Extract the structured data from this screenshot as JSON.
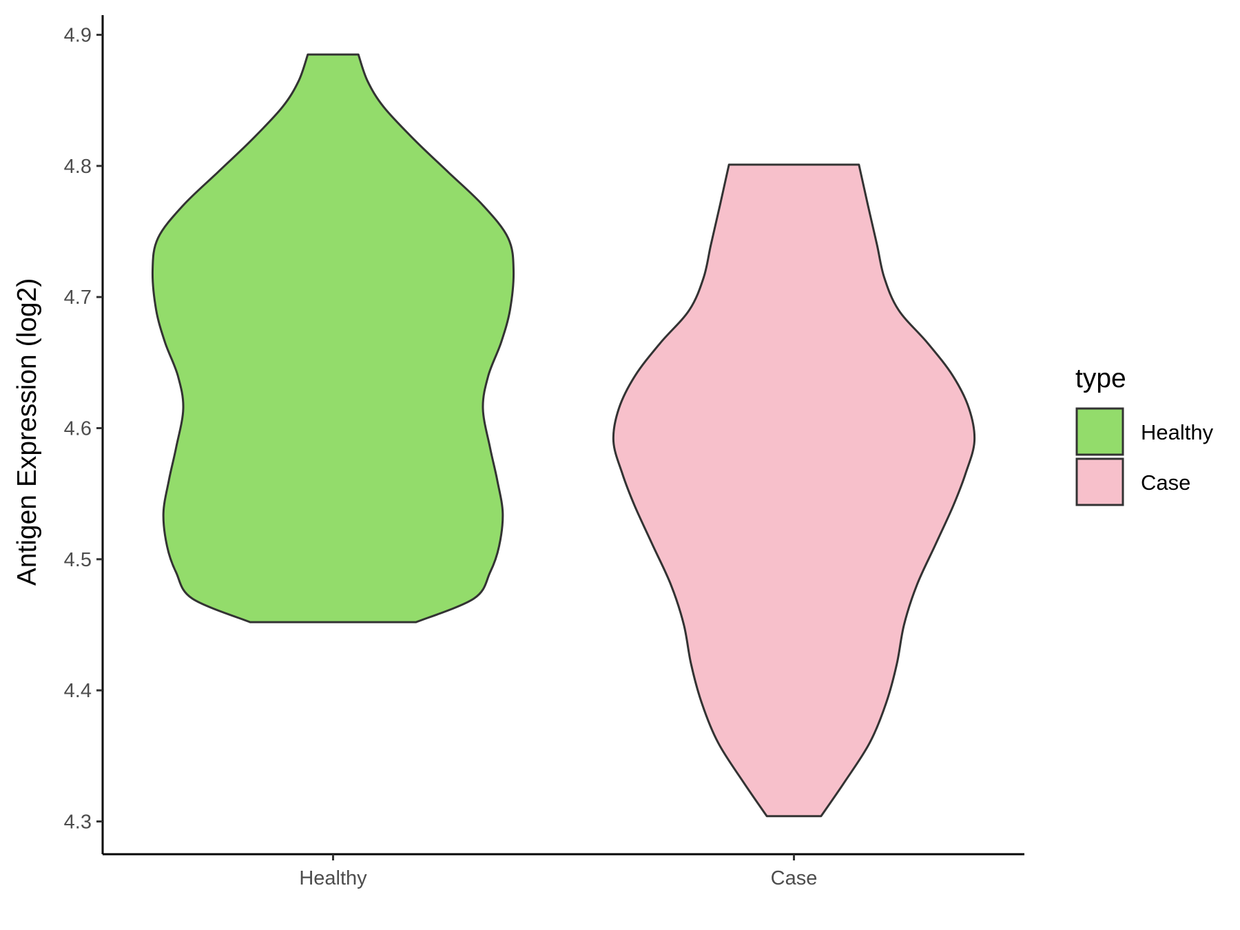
{
  "chart_data": {
    "type": "violin",
    "title": "",
    "xlabel": "",
    "ylabel": "Antigen Expression (log2)",
    "ylim": [
      4.275,
      4.915
    ],
    "yticks": [
      4.3,
      4.4,
      4.5,
      4.6,
      4.7,
      4.8,
      4.9
    ],
    "ytick_labels": [
      "4.3",
      "4.4",
      "4.5",
      "4.6",
      "4.7",
      "4.8",
      "4.9"
    ],
    "categories": [
      "Healthy",
      "Case"
    ],
    "grid": false,
    "legend": {
      "title": "type",
      "position": "right",
      "entries": [
        {
          "label": "Healthy",
          "color": "#93dc6b"
        },
        {
          "label": "Case",
          "color": "#f7c0cb"
        }
      ]
    },
    "series": [
      {
        "name": "Healthy",
        "color": "#93dc6b",
        "min": 4.452,
        "max": 4.885,
        "density_profile": [
          [
            4.452,
            0.46
          ],
          [
            4.47,
            0.78
          ],
          [
            4.49,
            0.87
          ],
          [
            4.51,
            0.92
          ],
          [
            4.535,
            0.94
          ],
          [
            4.56,
            0.91
          ],
          [
            4.585,
            0.87
          ],
          [
            4.615,
            0.83
          ],
          [
            4.64,
            0.86
          ],
          [
            4.665,
            0.93
          ],
          [
            4.69,
            0.98
          ],
          [
            4.72,
            1.0
          ],
          [
            4.745,
            0.97
          ],
          [
            4.77,
            0.83
          ],
          [
            4.795,
            0.64
          ],
          [
            4.82,
            0.45
          ],
          [
            4.845,
            0.28
          ],
          [
            4.865,
            0.19
          ],
          [
            4.885,
            0.14
          ]
        ]
      },
      {
        "name": "Case",
        "color": "#f7c0cb",
        "min": 4.304,
        "max": 4.801,
        "density_profile": [
          [
            4.304,
            0.15
          ],
          [
            4.33,
            0.28
          ],
          [
            4.36,
            0.42
          ],
          [
            4.39,
            0.51
          ],
          [
            4.42,
            0.57
          ],
          [
            4.45,
            0.61
          ],
          [
            4.48,
            0.68
          ],
          [
            4.51,
            0.78
          ],
          [
            4.54,
            0.88
          ],
          [
            4.565,
            0.95
          ],
          [
            4.59,
            1.0
          ],
          [
            4.615,
            0.97
          ],
          [
            4.64,
            0.88
          ],
          [
            4.665,
            0.74
          ],
          [
            4.69,
            0.58
          ],
          [
            4.715,
            0.5
          ],
          [
            4.74,
            0.46
          ],
          [
            4.77,
            0.41
          ],
          [
            4.801,
            0.36
          ]
        ]
      }
    ]
  }
}
